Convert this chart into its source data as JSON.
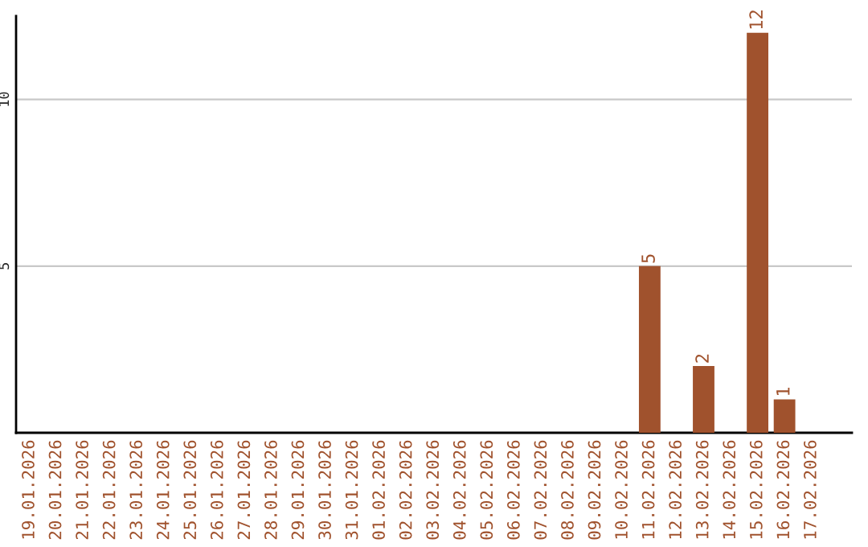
{
  "chart_data": {
    "type": "bar",
    "categories": [
      "19.01.2026",
      "20.01.2026",
      "21.01.2026",
      "22.01.2026",
      "23.01.2026",
      "24.01.2026",
      "25.01.2026",
      "26.01.2026",
      "27.01.2026",
      "28.01.2026",
      "29.01.2026",
      "30.01.2026",
      "31.01.2026",
      "01.02.2026",
      "02.02.2026",
      "03.02.2026",
      "04.02.2026",
      "05.02.2026",
      "06.02.2026",
      "07.02.2026",
      "08.02.2026",
      "09.02.2026",
      "10.02.2026",
      "11.02.2026",
      "12.02.2026",
      "13.02.2026",
      "14.02.2026",
      "15.02.2026",
      "16.02.2026",
      "17.02.2026"
    ],
    "values": [
      0,
      0,
      0,
      0,
      0,
      0,
      0,
      0,
      0,
      0,
      0,
      0,
      0,
      0,
      0,
      0,
      0,
      0,
      0,
      0,
      0,
      0,
      0,
      5,
      0,
      2,
      0,
      12,
      1,
      0
    ],
    "value_labels": [
      null,
      null,
      null,
      null,
      null,
      null,
      null,
      null,
      null,
      null,
      null,
      null,
      null,
      null,
      null,
      null,
      null,
      null,
      null,
      null,
      null,
      null,
      null,
      "5",
      null,
      "2",
      null,
      "12",
      "1",
      null
    ],
    "color": "#a0522d",
    "ylim": [
      0,
      12.5
    ],
    "yticks": [
      5,
      10
    ],
    "grid": "y",
    "legend": false
  }
}
